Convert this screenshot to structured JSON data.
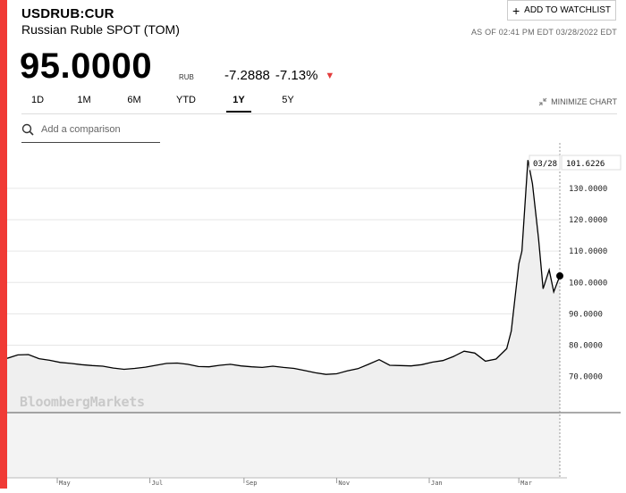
{
  "header": {
    "ticker": "USDRUB:CUR",
    "name": "Russian Ruble SPOT (TOM)",
    "watchlist_label": "ADD TO WATCHLIST",
    "as_of": "AS OF 02:41 PM EDT 03/28/2022 EDT"
  },
  "quote": {
    "price": "95.0000",
    "unit": "RUB",
    "change": "-7.2888",
    "change_pct": "-7.13%"
  },
  "tabs": [
    {
      "label": "1D",
      "active": false
    },
    {
      "label": "1M",
      "active": false
    },
    {
      "label": "6M",
      "active": false
    },
    {
      "label": "YTD",
      "active": false
    },
    {
      "label": "1Y",
      "active": true
    },
    {
      "label": "5Y",
      "active": false
    }
  ],
  "minimize_label": "MINIMIZE CHART",
  "comparison": {
    "placeholder": "Add a comparison"
  },
  "watermark": "BloombergMarkets",
  "colors": {
    "accent": "#f03a35",
    "down": "#e33d3d",
    "line": "#000000"
  },
  "chart_data": {
    "type": "area",
    "x": [
      "2021-03-29",
      "2021-04-05",
      "2021-04-12",
      "2021-04-19",
      "2021-04-26",
      "2021-05-03",
      "2021-05-10",
      "2021-05-17",
      "2021-05-24",
      "2021-05-31",
      "2021-06-07",
      "2021-06-14",
      "2021-06-21",
      "2021-06-28",
      "2021-07-05",
      "2021-07-12",
      "2021-07-19",
      "2021-07-26",
      "2021-08-02",
      "2021-08-09",
      "2021-08-16",
      "2021-08-23",
      "2021-08-30",
      "2021-09-06",
      "2021-09-13",
      "2021-09-20",
      "2021-09-27",
      "2021-10-04",
      "2021-10-11",
      "2021-10-18",
      "2021-10-25",
      "2021-11-01",
      "2021-11-08",
      "2021-11-15",
      "2021-11-22",
      "2021-11-29",
      "2021-12-06",
      "2021-12-13",
      "2021-12-20",
      "2021-12-27",
      "2022-01-03",
      "2022-01-10",
      "2022-01-17",
      "2022-01-24",
      "2022-01-31",
      "2022-02-07",
      "2022-02-14",
      "2022-02-21",
      "2022-02-24",
      "2022-03-01",
      "2022-03-03",
      "2022-03-07",
      "2022-03-10",
      "2022-03-14",
      "2022-03-17",
      "2022-03-21",
      "2022-03-24",
      "2022-03-28"
    ],
    "values": [
      75.8,
      76.9,
      77.0,
      75.7,
      75.2,
      74.5,
      74.2,
      73.8,
      73.5,
      73.3,
      72.7,
      72.3,
      72.6,
      73.0,
      73.6,
      74.2,
      74.3,
      73.9,
      73.2,
      73.1,
      73.6,
      73.9,
      73.4,
      73.1,
      72.9,
      73.3,
      72.9,
      72.6,
      71.9,
      71.2,
      70.7,
      70.9,
      71.8,
      72.5,
      73.9,
      75.4,
      73.6,
      73.5,
      73.4,
      73.8,
      74.6,
      75.1,
      76.4,
      78.1,
      77.5,
      74.9,
      75.6,
      78.9,
      84.5,
      106.0,
      110.0,
      139.0,
      131.5,
      114.0,
      98.0,
      104.0,
      97.0,
      102.1
    ],
    "x_ticks": [
      "May",
      "Jul",
      "Sep",
      "Nov",
      "Jan",
      "Mar"
    ],
    "y_ticks": [
      70,
      80,
      90,
      100,
      110,
      120,
      130
    ],
    "ylim": [
      58.5,
      144.5
    ],
    "last_date_label": "03/28",
    "last_value_label": "101.6226",
    "grid": true
  }
}
